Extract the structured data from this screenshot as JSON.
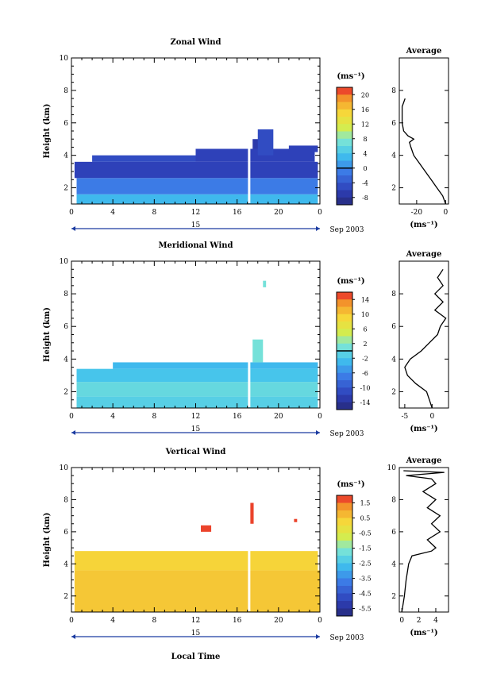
{
  "charts": [
    {
      "title": "Zonal Wind",
      "ylabel": "Height (km)",
      "x_ticks": [
        "0",
        "4",
        "8",
        "12",
        "16",
        "20",
        "0"
      ],
      "y_ticks": [
        "2",
        "4",
        "6",
        "8",
        "10"
      ],
      "day_label": "15",
      "date_label": "Sep 2003",
      "unit_label": "(ms⁻¹)",
      "colorbar_ticks": [
        "20",
        "16",
        "12",
        "8",
        "4",
        "0",
        "-4",
        "-8"
      ],
      "colorbar_range": [
        -10,
        22
      ],
      "colorbar_marker": 0,
      "avg_title": "Average",
      "avg_x_ticks": [
        "-20",
        "0"
      ],
      "avg_y_ticks": [
        "2",
        "4",
        "6",
        "8"
      ],
      "avg_xlabel": "(ms⁻¹)",
      "avg_xlim": [
        -32,
        2
      ]
    },
    {
      "title": "Meridional Wind",
      "ylabel": "Height (km)",
      "x_ticks": [
        "0",
        "4",
        "8",
        "12",
        "16",
        "20",
        "0"
      ],
      "y_ticks": [
        "2",
        "4",
        "6",
        "8",
        "10"
      ],
      "day_label": "15",
      "date_label": "Sep 2003",
      "unit_label": "(ms⁻¹)",
      "colorbar_ticks": [
        "14",
        "10",
        "6",
        "2",
        "-2",
        "-6",
        "-10",
        "-14"
      ],
      "colorbar_range": [
        -16,
        16
      ],
      "colorbar_marker": 0,
      "avg_title": "Average",
      "avg_x_ticks": [
        "-5",
        "0"
      ],
      "avg_y_ticks": [
        "2",
        "4",
        "6",
        "8"
      ],
      "avg_xlabel": "(ms⁻¹)",
      "avg_xlim": [
        -6,
        3
      ]
    },
    {
      "title": "Vertical Wind",
      "ylabel": "Height (km)",
      "xlabel": "Local Time",
      "x_ticks": [
        "0",
        "4",
        "8",
        "12",
        "16",
        "20",
        "0"
      ],
      "y_ticks": [
        "2",
        "4",
        "6",
        "8",
        "10"
      ],
      "day_label": "15",
      "date_label": "Sep 2003",
      "unit_label": "(ms⁻¹)",
      "colorbar_ticks": [
        "1.5",
        "0.5",
        "-0.5",
        "-1.5",
        "-2.5",
        "-3.5",
        "-4.5",
        "-5.5"
      ],
      "colorbar_range": [
        -6,
        2
      ],
      "colorbar_marker": null,
      "avg_title": "Average",
      "avg_x_ticks": [
        "0",
        "2",
        "4"
      ],
      "avg_y_ticks": [
        "2",
        "4",
        "6",
        "8",
        "10"
      ],
      "avg_xlabel": "(ms⁻¹)",
      "avg_xlim": [
        -0.3,
        5.5
      ]
    }
  ],
  "chart_data": [
    {
      "type": "heatmap",
      "title": "Zonal Wind",
      "ylabel": "Height (km)",
      "xlim": [
        0,
        24
      ],
      "ylim": [
        1,
        10
      ],
      "x_unit": "hour (local time)",
      "y_unit": "km",
      "regions": [
        {
          "x": [
            0.5,
            23.8
          ],
          "y": [
            1.0,
            1.6
          ],
          "value": 3
        },
        {
          "x": [
            0.5,
            23.8
          ],
          "y": [
            1.6,
            2.6
          ],
          "value": -1
        },
        {
          "x": [
            0.3,
            23.8
          ],
          "y": [
            2.6,
            3.6
          ],
          "value": -6
        },
        {
          "x": [
            2.0,
            12.0
          ],
          "y": [
            3.6,
            4.0
          ],
          "value": -5
        },
        {
          "x": [
            12.0,
            23.5
          ],
          "y": [
            3.6,
            4.4
          ],
          "value": -6
        },
        {
          "x": [
            17.5,
            18.5
          ],
          "y": [
            4.4,
            5.0
          ],
          "value": -7
        },
        {
          "x": [
            18.0,
            19.5
          ],
          "y": [
            4.0,
            5.6
          ],
          "value": -5
        },
        {
          "x": [
            21.0,
            23.8
          ],
          "y": [
            4.2,
            4.6
          ],
          "value": -6
        }
      ],
      "average_profile": {
        "height": [
          1.0,
          1.5,
          2.0,
          2.5,
          3.0,
          3.5,
          4.0,
          4.5,
          4.8,
          5.0,
          5.2,
          5.5,
          6.0,
          7.0,
          7.5
        ],
        "value": [
          0,
          -2,
          -6,
          -10,
          -14,
          -18,
          -22,
          -24,
          -25,
          -22,
          -26,
          -29,
          -30,
          -30,
          -28
        ]
      }
    },
    {
      "type": "heatmap",
      "title": "Meridional Wind",
      "ylabel": "Height (km)",
      "xlim": [
        0,
        24
      ],
      "ylim": [
        1,
        10
      ],
      "x_unit": "hour (local time)",
      "y_unit": "km",
      "regions": [
        {
          "x": [
            0.5,
            23.8
          ],
          "y": [
            1.0,
            1.7
          ],
          "value": -1
        },
        {
          "x": [
            0.5,
            23.8
          ],
          "y": [
            1.7,
            2.6
          ],
          "value": 0
        },
        {
          "x": [
            0.5,
            23.8
          ],
          "y": [
            2.6,
            3.4
          ],
          "value": -2
        },
        {
          "x": [
            4.0,
            23.8
          ],
          "y": [
            3.4,
            3.8
          ],
          "value": -3
        },
        {
          "x": [
            17.5,
            18.5
          ],
          "y": [
            3.8,
            5.2
          ],
          "value": 1
        },
        {
          "x": [
            18.5,
            18.8
          ],
          "y": [
            8.4,
            8.8
          ],
          "value": 1
        }
      ],
      "average_profile": {
        "height": [
          1.0,
          1.5,
          2.0,
          2.5,
          3.0,
          3.5,
          4.0,
          4.5,
          5.0,
          5.5,
          6.0,
          6.5,
          7.0,
          7.5,
          8.0,
          8.5,
          9.0,
          9.5
        ],
        "value": [
          0,
          -0.5,
          -1,
          -3,
          -4.5,
          -5,
          -4,
          -2,
          -0.5,
          1,
          1.5,
          2.5,
          0.5,
          2,
          0.5,
          2,
          1,
          2
        ]
      }
    },
    {
      "type": "heatmap",
      "title": "Vertical Wind",
      "ylabel": "Height (km)",
      "xlabel": "Local Time",
      "xlim": [
        0,
        24
      ],
      "ylim": [
        1,
        10
      ],
      "x_unit": "hour (local time)",
      "y_unit": "km",
      "regions": [
        {
          "x": [
            0.3,
            24.0
          ],
          "y": [
            1.0,
            3.6
          ],
          "value": 0.5
        },
        {
          "x": [
            0.3,
            23.8
          ],
          "y": [
            3.6,
            4.8
          ],
          "value": 0.3
        },
        {
          "x": [
            12.5,
            13.5
          ],
          "y": [
            6.0,
            6.4
          ],
          "value": 1.8
        },
        {
          "x": [
            17.2,
            17.6
          ],
          "y": [
            6.5,
            7.8
          ],
          "value": 1.8
        },
        {
          "x": [
            21.5,
            21.8
          ],
          "y": [
            6.6,
            6.8
          ],
          "value": 1.8
        }
      ],
      "average_profile": {
        "height": [
          1.0,
          2.0,
          3.0,
          4.0,
          4.5,
          4.8,
          5.0,
          5.5,
          6.0,
          6.5,
          7.0,
          7.5,
          8.0,
          8.5,
          9.0,
          9.3,
          9.5,
          9.7,
          9.8
        ],
        "value": [
          0,
          0.3,
          0.5,
          0.8,
          1.2,
          3.5,
          4.0,
          3.0,
          4.5,
          3.5,
          4.5,
          3.0,
          4.0,
          2.5,
          4.0,
          3.5,
          0.5,
          5.0,
          0.2
        ]
      }
    }
  ]
}
